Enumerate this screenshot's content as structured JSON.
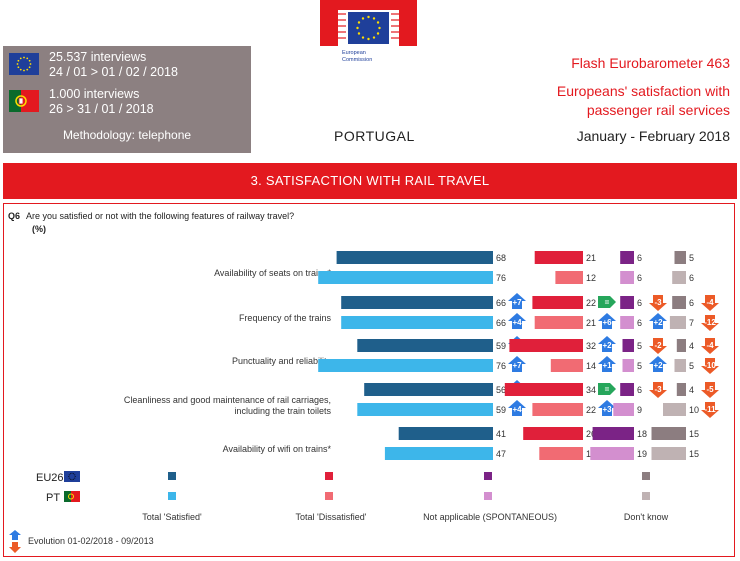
{
  "header": {
    "eu_interviews": "25.537 interviews",
    "eu_dates": "24 / 01 > 01 / 02 / 2018",
    "pt_interviews": "1.000 interviews",
    "pt_dates": "26 > 31 / 01 / 2018",
    "methodology": "Methodology: telephone",
    "logo_line1": "European",
    "logo_line2": "Commission",
    "country": "PORTUGAL",
    "survey": "Flash Eurobarometer 463",
    "title": "Europeans' satisfaction with passenger rail services",
    "period": "January - February 2018"
  },
  "section_title": "3. SATISFACTION WITH RAIL TRAVEL",
  "question_id": "Q6",
  "question_text": "Are you satisfied or not with the following features of railway travel?",
  "unit": "(%)",
  "colors": {
    "eu_satisfied": "#1f5f8b",
    "pt_satisfied": "#3db6ea",
    "eu_dissatisfied": "#e0203a",
    "pt_dissatisfied": "#f16b73",
    "eu_na": "#7b2386",
    "pt_na": "#d38fcf",
    "eu_dk": "#8c7d80",
    "pt_dk": "#bfb2b3",
    "up": "#2e7be2",
    "down": "#ec5a27",
    "equal": "#26a65b",
    "brand_red": "#e3191f"
  },
  "chart_data": {
    "type": "bar",
    "orientation": "horizontal",
    "stacking": "four separate columns",
    "unit": "%",
    "categories": [
      "Availability of seats on trains*",
      "Frequency of the trains",
      "Punctuality and reliability",
      "Cleanliness and good maintenance of rail carriages, including the train toilets",
      "Availability of wifi on trains*"
    ],
    "series": [
      {
        "name": "Total 'Satisfied'",
        "EU26": [
          68,
          66,
          59,
          56,
          41
        ],
        "PT": [
          76,
          66,
          76,
          59,
          47
        ],
        "evo_EU26": [
          null,
          "+7",
          "+4",
          "+8",
          null
        ],
        "evo_PT": [
          null,
          "+4",
          "+7",
          "+4",
          null
        ]
      },
      {
        "name": "Total 'Dissatisfied'",
        "EU26": [
          21,
          22,
          32,
          34,
          26
        ],
        "PT": [
          12,
          21,
          14,
          22,
          19
        ],
        "evo_EU26": [
          null,
          "=",
          "+2",
          "=",
          null
        ],
        "evo_PT": [
          null,
          "+6",
          "+1",
          "+3",
          null
        ]
      },
      {
        "name": "Not applicable (SPONTANEOUS)",
        "EU26": [
          6,
          6,
          5,
          6,
          18
        ],
        "PT": [
          6,
          6,
          5,
          9,
          19
        ],
        "evo_EU26": [
          null,
          "-3",
          "-2",
          "-3",
          null
        ],
        "evo_PT": [
          null,
          "+2",
          "+2",
          null,
          null
        ]
      },
      {
        "name": "Don't know",
        "EU26": [
          5,
          6,
          4,
          4,
          15
        ],
        "PT": [
          6,
          7,
          5,
          10,
          15
        ],
        "evo_EU26": [
          null,
          "-4",
          "-4",
          "-5",
          null
        ],
        "evo_PT": [
          null,
          "-12",
          "-10",
          "-11",
          null
        ]
      }
    ],
    "rows_legend": [
      "EU26",
      "PT"
    ],
    "evolution_label": "Evolution 01-02/2018 - 09/2013"
  }
}
